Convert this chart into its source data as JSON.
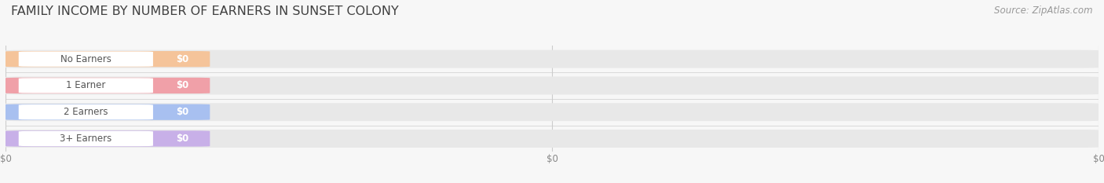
{
  "title": "FAMILY INCOME BY NUMBER OF EARNERS IN SUNSET COLONY",
  "source": "Source: ZipAtlas.com",
  "categories": [
    "No Earners",
    "1 Earner",
    "2 Earners",
    "3+ Earners"
  ],
  "values": [
    0,
    0,
    0,
    0
  ],
  "bar_colors": [
    "#f5c49a",
    "#f0a0a8",
    "#a8c0f0",
    "#c8b0e8"
  ],
  "value_labels": [
    "$0",
    "$0",
    "$0",
    "$0"
  ],
  "background_color": "#f7f7f7",
  "bar_bg_color": "#e8e8e8",
  "white_label_color": "#ffffff",
  "title_fontsize": 11.5,
  "source_fontsize": 8.5,
  "cat_fontsize": 8.5,
  "val_fontsize": 8.5,
  "tick_fontsize": 8.5,
  "xlim": [
    0,
    1
  ],
  "n_bars": 4
}
